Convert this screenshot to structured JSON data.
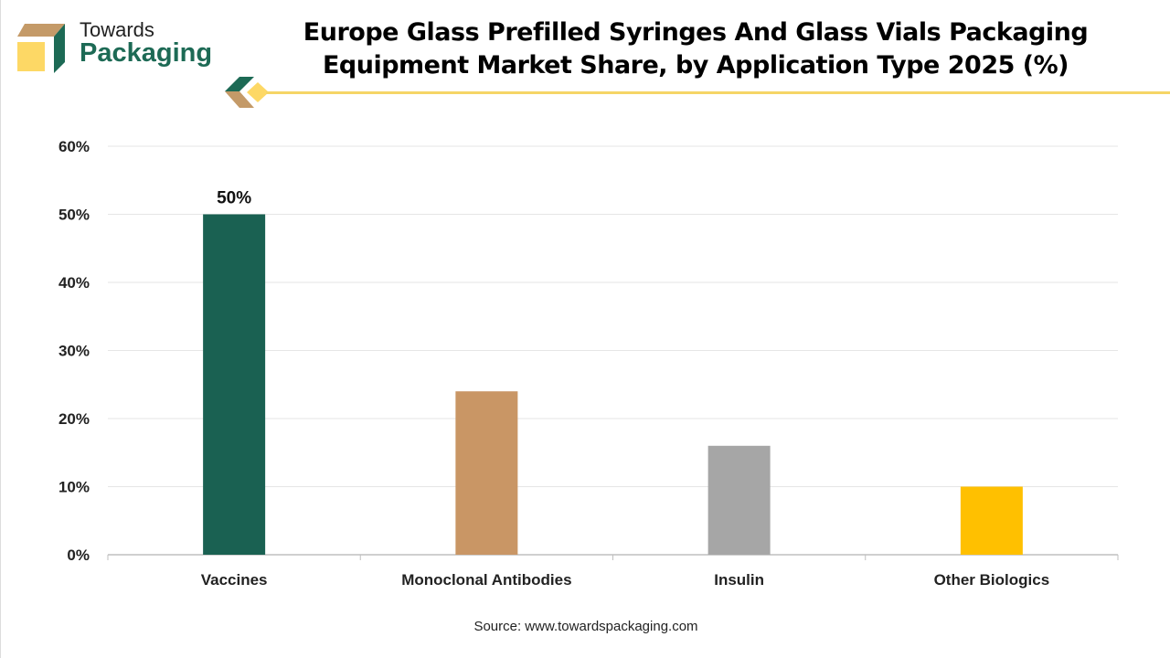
{
  "brand": {
    "line1": "Towards",
    "line2": "Packaging"
  },
  "source": "Source: www.towardspackaging.com",
  "chart_data": {
    "type": "bar",
    "title": "Europe Glass Prefilled Syringes And Glass Vials Packaging Equipment Market Share, by Application Type 2025 (%)",
    "categories": [
      "Vaccines",
      "Monoclonal Antibodies",
      "Insulin",
      "Other Biologics"
    ],
    "values": [
      50,
      24,
      16,
      10
    ],
    "colors": [
      "#1a6152",
      "#c99665",
      "#a6a6a6",
      "#ffc000"
    ],
    "data_labels": [
      "50%",
      null,
      null,
      null
    ],
    "xlabel": "",
    "ylabel": "",
    "ylim": [
      0,
      60
    ],
    "yticks": [
      "0%",
      "10%",
      "20%",
      "30%",
      "40%",
      "50%",
      "60%"
    ],
    "grid": true,
    "legend": "none"
  }
}
